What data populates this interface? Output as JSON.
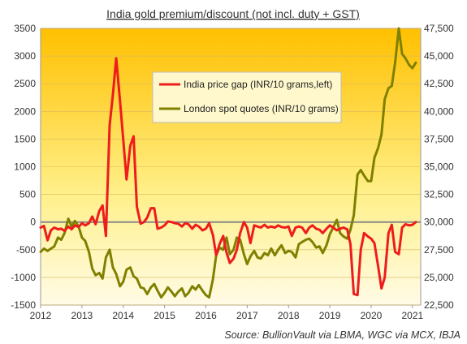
{
  "chart_data": {
    "type": "line",
    "title": "India gold premium/discount  (not incl. duty + GST)",
    "source": "Source: BullionVault via LBMA, WGC via MCX, IBJA",
    "x_ticks": [
      "2012",
      "2013",
      "2014",
      "2015",
      "2016",
      "2017",
      "2018",
      "2019",
      "2020",
      "2021"
    ],
    "xlim": [
      2012.0,
      2021.2
    ],
    "y_left": {
      "ticks": [
        "3500",
        "3000",
        "2500",
        "2000",
        "1500",
        "1000",
        "500",
        "0",
        "-500",
        "-1000",
        "-1500"
      ],
      "ylim": [
        -1500,
        3500
      ]
    },
    "y_right": {
      "ticks": [
        "47,500",
        "45,000",
        "42,500",
        "40,000",
        "37,500",
        "35,000",
        "32,500",
        "30,000",
        "27,500",
        "25,000",
        "22,500"
      ],
      "ylim": [
        22500,
        47500
      ]
    },
    "grid": "horizontal",
    "legend_position": "top-center",
    "colors": {
      "india_price_gap": "#ee1c1c",
      "london_spot": "#808000",
      "background_top": "#ffc000",
      "background_bottom": "#fffbe6",
      "zero_line": "#888888"
    },
    "series": [
      {
        "name": "India price gap (INR/10 grams,left)",
        "axis": "left",
        "x": [
          2012.0,
          2012.08,
          2012.17,
          2012.25,
          2012.33,
          2012.42,
          2012.5,
          2012.58,
          2012.67,
          2012.75,
          2012.83,
          2012.92,
          2013.0,
          2013.08,
          2013.17,
          2013.25,
          2013.33,
          2013.42,
          2013.5,
          2013.58,
          2013.67,
          2013.75,
          2013.83,
          2013.92,
          2014.0,
          2014.08,
          2014.17,
          2014.25,
          2014.33,
          2014.42,
          2014.5,
          2014.58,
          2014.67,
          2014.75,
          2014.83,
          2014.92,
          2015.0,
          2015.08,
          2015.17,
          2015.25,
          2015.33,
          2015.42,
          2015.5,
          2015.58,
          2015.67,
          2015.75,
          2015.83,
          2015.92,
          2016.0,
          2016.08,
          2016.17,
          2016.25,
          2016.33,
          2016.42,
          2016.5,
          2016.58,
          2016.67,
          2016.75,
          2016.83,
          2016.92,
          2017.0,
          2017.08,
          2017.17,
          2017.25,
          2017.33,
          2017.42,
          2017.5,
          2017.58,
          2017.67,
          2017.75,
          2017.83,
          2017.92,
          2018.0,
          2018.08,
          2018.17,
          2018.25,
          2018.33,
          2018.42,
          2018.5,
          2018.58,
          2018.67,
          2018.75,
          2018.83,
          2018.92,
          2019.0,
          2019.08,
          2019.17,
          2019.25,
          2019.33,
          2019.42,
          2019.5,
          2019.58,
          2019.67,
          2019.75,
          2019.83,
          2019.92,
          2020.0,
          2020.08,
          2020.17,
          2020.25,
          2020.33,
          2020.42,
          2020.5,
          2020.58,
          2020.67,
          2020.75,
          2020.83,
          2020.92,
          2021.0,
          2021.08
        ],
        "values": [
          -100,
          -70,
          -330,
          -150,
          -100,
          -130,
          -120,
          -160,
          -80,
          -130,
          -60,
          -90,
          -20,
          -60,
          -20,
          100,
          -40,
          200,
          300,
          -250,
          1750,
          2300,
          2960,
          2200,
          1500,
          770,
          1380,
          1550,
          280,
          -30,
          0,
          80,
          250,
          250,
          -120,
          -100,
          -60,
          10,
          0,
          -20,
          -30,
          -80,
          -20,
          -40,
          -120,
          -50,
          -80,
          -150,
          -120,
          -20,
          -230,
          -600,
          -400,
          -250,
          -550,
          -740,
          -660,
          -500,
          -200,
          0,
          -100,
          -380,
          -60,
          -80,
          -100,
          -50,
          -100,
          -80,
          -100,
          -60,
          -90,
          -100,
          -80,
          -250,
          -100,
          -80,
          -100,
          -200,
          -100,
          -60,
          -120,
          -140,
          -200,
          -120,
          -60,
          -100,
          -150,
          -120,
          -100,
          -130,
          -400,
          -1300,
          -1320,
          -500,
          -200,
          -260,
          -300,
          -380,
          -800,
          -1200,
          -1000,
          -200,
          -50,
          -540,
          -580,
          -100,
          -40,
          -60,
          -50,
          0
        ]
      },
      {
        "name": "London spot quotes (INR/10 grams)",
        "axis": "right",
        "x": [
          2012.0,
          2012.08,
          2012.17,
          2012.25,
          2012.33,
          2012.42,
          2012.5,
          2012.58,
          2012.67,
          2012.75,
          2012.83,
          2012.92,
          2013.0,
          2013.08,
          2013.17,
          2013.25,
          2013.33,
          2013.42,
          2013.5,
          2013.58,
          2013.67,
          2013.75,
          2013.83,
          2013.92,
          2014.0,
          2014.08,
          2014.17,
          2014.25,
          2014.33,
          2014.42,
          2014.5,
          2014.58,
          2014.67,
          2014.75,
          2014.83,
          2014.92,
          2015.0,
          2015.08,
          2015.17,
          2015.25,
          2015.33,
          2015.42,
          2015.5,
          2015.58,
          2015.67,
          2015.75,
          2015.83,
          2015.92,
          2016.0,
          2016.08,
          2016.17,
          2016.25,
          2016.33,
          2016.42,
          2016.5,
          2016.58,
          2016.67,
          2016.75,
          2016.83,
          2016.92,
          2017.0,
          2017.08,
          2017.17,
          2017.25,
          2017.33,
          2017.42,
          2017.5,
          2017.58,
          2017.67,
          2017.75,
          2017.83,
          2017.92,
          2018.0,
          2018.08,
          2018.17,
          2018.25,
          2018.33,
          2018.42,
          2018.5,
          2018.58,
          2018.67,
          2018.75,
          2018.83,
          2018.92,
          2019.0,
          2019.08,
          2019.17,
          2019.25,
          2019.33,
          2019.42,
          2019.5,
          2019.58,
          2019.67,
          2019.75,
          2019.83,
          2019.92,
          2020.0,
          2020.08,
          2020.17,
          2020.25,
          2020.33,
          2020.42,
          2020.5,
          2020.58,
          2020.67,
          2020.75,
          2020.83,
          2020.92,
          2021.0,
          2021.08
        ],
        "values": [
          27300,
          27600,
          27400,
          27600,
          27800,
          28600,
          28400,
          29000,
          30300,
          29600,
          30100,
          29600,
          28600,
          28300,
          27300,
          25800,
          25200,
          25400,
          24900,
          26800,
          27500,
          25900,
          25300,
          24200,
          24600,
          25700,
          25900,
          25100,
          24900,
          24100,
          24000,
          23500,
          24100,
          24400,
          23800,
          23200,
          23600,
          24100,
          23700,
          23300,
          23700,
          24000,
          23300,
          23600,
          24200,
          23900,
          24300,
          23800,
          23400,
          23200,
          24800,
          27000,
          27700,
          27500,
          28600,
          27100,
          27500,
          28600,
          28400,
          27100,
          26200,
          26900,
          27400,
          26800,
          26700,
          27200,
          27000,
          27600,
          27000,
          27500,
          27900,
          27200,
          27400,
          27300,
          26800,
          28000,
          28200,
          28400,
          28500,
          28200,
          27700,
          27800,
          27200,
          27900,
          28900,
          29500,
          30200,
          29000,
          28700,
          28500,
          29300,
          30600,
          34300,
          34700,
          34200,
          33700,
          33700,
          35800,
          36700,
          37900,
          41100,
          42100,
          42300,
          44400,
          47500,
          45200,
          44800,
          44200,
          43900,
          44400
        ]
      }
    ]
  }
}
